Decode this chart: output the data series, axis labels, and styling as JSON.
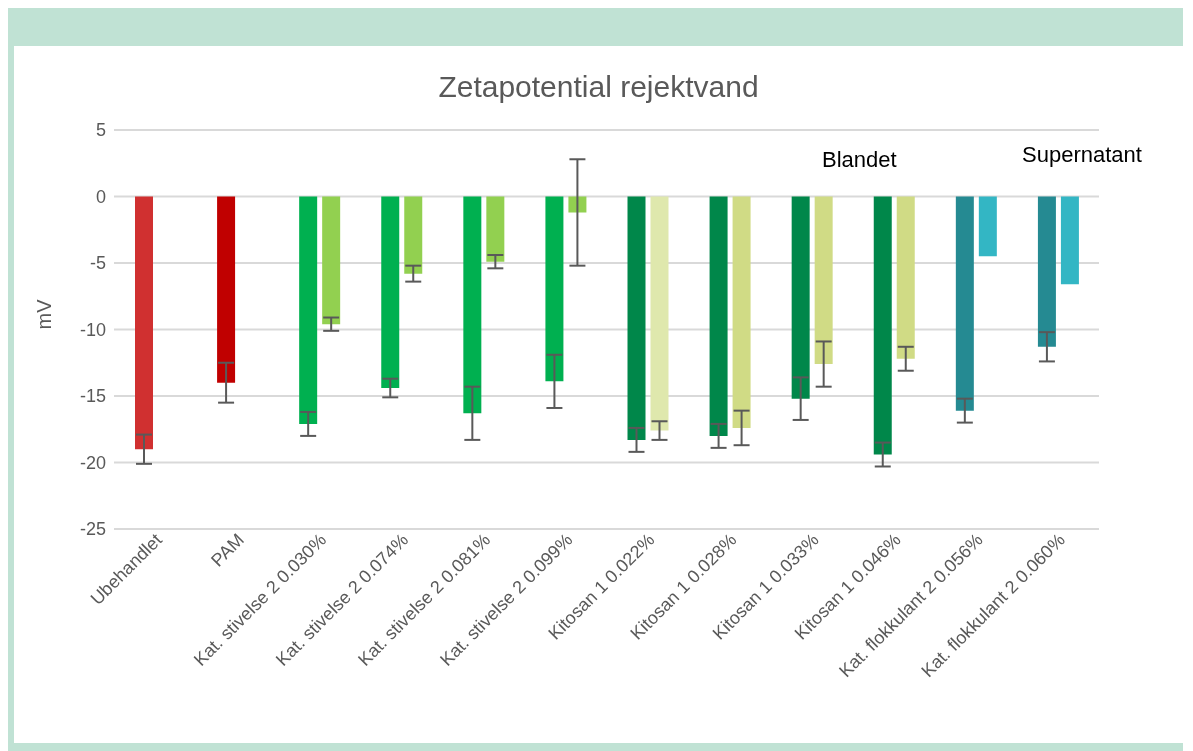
{
  "chart_data": {
    "type": "bar",
    "title": "Zetapotential rejektvand",
    "ylabel": "mV",
    "categories": [
      "Ubehandlet",
      "PAM",
      "Kat. stivelse 2 0.030%",
      "Kat. stivelse 2 0.074%",
      "Kat. stivelse 2 0.081%",
      "Kat. stivelse 2 0.099%",
      "Kitosan 1 0.022%",
      "Kitosan 1 0.028%",
      "Kitosan 1 0.033%",
      "Kitosan 1 0.046%",
      "Kat. flokkulant 2 0.056%",
      "Kat. flokkulant 2 0.060%"
    ],
    "series": [
      {
        "colors": [
          "#d03030",
          "#c00000",
          "#00b050",
          "#00b050",
          "#00b050",
          "#00b050",
          "#00874a",
          "#00874a",
          "#00874a",
          "#00874a",
          "#258a92",
          "#258a92"
        ],
        "values": [
          -19.0,
          -14.0,
          -17.1,
          -14.4,
          -16.3,
          -13.9,
          -18.3,
          -18.0,
          -15.2,
          -19.4,
          -16.1,
          -11.3
        ],
        "errors": [
          1.1,
          1.5,
          0.9,
          0.7,
          2.0,
          2.0,
          0.9,
          0.9,
          1.6,
          0.9,
          0.9,
          1.1
        ]
      },
      {
        "colors": [
          null,
          null,
          "#92d050",
          "#92d050",
          "#92d050",
          "#92d050",
          "#dfe8ad",
          "#d0db85",
          "#d0db85",
          "#d0db85",
          "#33b6c4",
          "#33b6c4"
        ],
        "values": [
          null,
          null,
          -9.6,
          -5.8,
          -4.9,
          -1.2,
          -17.6,
          -17.4,
          -12.6,
          -12.2,
          -4.5,
          -6.6
        ],
        "errors": [
          null,
          null,
          0.5,
          0.6,
          0.5,
          4.0,
          0.7,
          1.3,
          1.7,
          0.9,
          null,
          null
        ]
      }
    ],
    "ylim": [
      -25,
      5
    ],
    "yticks": [
      -25,
      -20,
      -15,
      -10,
      -5,
      0,
      5
    ],
    "grid": "y",
    "annotations": [
      "Blandet",
      "Supernatant"
    ]
  }
}
